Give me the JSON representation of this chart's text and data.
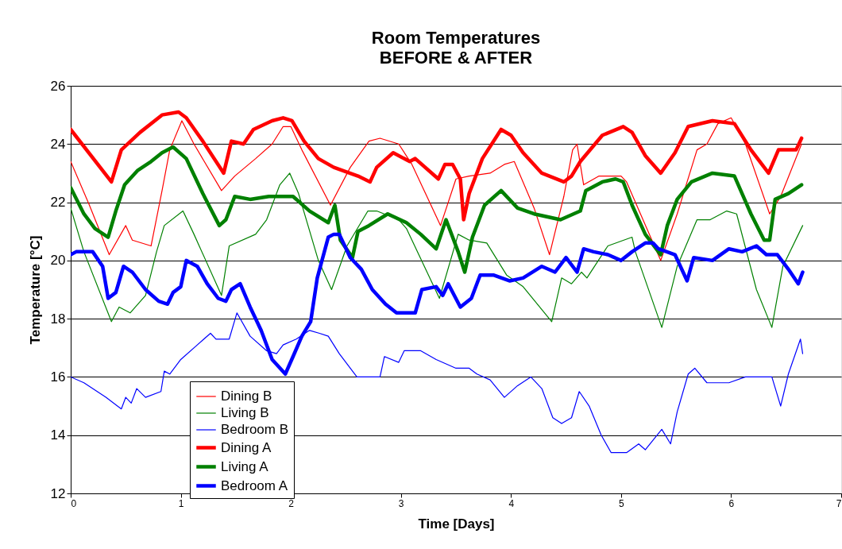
{
  "chart_data": {
    "type": "line",
    "title": "Room Temperatures",
    "subtitle": "BEFORE & AFTER",
    "xlabel": "Time [Days]",
    "ylabel": "Temperature [°C]",
    "xlim": [
      0,
      7
    ],
    "xticks": [
      0,
      1,
      2,
      3,
      4,
      5,
      6,
      7
    ],
    "ylim": [
      12,
      26
    ],
    "yticks": [
      12,
      14,
      16,
      18,
      20,
      22,
      24,
      26
    ],
    "grid": "y",
    "legend": "bottom left",
    "marker": "none",
    "line_style": "solid",
    "series": [
      {
        "name": "Dining B",
        "color": "#ff0000",
        "x": [
          0,
          0.17,
          0.35,
          0.5,
          0.56,
          0.73,
          0.83,
          0.9,
          1.01,
          1.12,
          1.37,
          1.49,
          1.68,
          1.83,
          1.93,
          2.0,
          2.1,
          2.36,
          2.54,
          2.71,
          2.81,
          2.98,
          3.1,
          3.36,
          3.5,
          3.62,
          3.81,
          3.94,
          4.03,
          4.21,
          4.35,
          4.48,
          4.56,
          4.6,
          4.66,
          4.8,
          5.0,
          5.05,
          5.36,
          5.51,
          5.69,
          5.78,
          5.88,
          6.0,
          6.13,
          6.35,
          6.45,
          6.64
        ],
        "values": [
          23.4,
          21.9,
          20.2,
          21.2,
          20.7,
          20.5,
          22.4,
          23.8,
          24.8,
          24.0,
          22.4,
          22.9,
          23.5,
          24.0,
          24.6,
          24.6,
          23.8,
          21.9,
          23.2,
          24.1,
          24.2,
          24.0,
          23.3,
          21.2,
          22.8,
          22.9,
          23.0,
          23.3,
          23.4,
          21.8,
          20.2,
          22.2,
          23.8,
          24.0,
          22.6,
          22.9,
          22.9,
          22.7,
          20.0,
          21.6,
          23.8,
          24.0,
          24.7,
          24.9,
          24.0,
          21.6,
          22.2,
          24.0
        ]
      },
      {
        "name": "Living B",
        "color": "#008000",
        "x": [
          0,
          0.12,
          0.37,
          0.44,
          0.54,
          0.68,
          0.78,
          0.85,
          1.02,
          1.12,
          1.37,
          1.44,
          1.68,
          1.78,
          1.9,
          1.99,
          2.07,
          2.25,
          2.37,
          2.51,
          2.7,
          2.78,
          2.98,
          3.05,
          3.35,
          3.52,
          3.62,
          3.78,
          3.96,
          4.11,
          4.37,
          4.46,
          4.55,
          4.64,
          4.69,
          4.88,
          5.1,
          5.13,
          5.37,
          5.51,
          5.69,
          5.81,
          5.96,
          6.05,
          6.23,
          6.37,
          6.47,
          6.65
        ],
        "values": [
          21.8,
          20.3,
          17.9,
          18.4,
          18.2,
          18.8,
          20.3,
          21.2,
          21.7,
          20.9,
          18.8,
          20.5,
          20.9,
          21.4,
          22.6,
          23.0,
          22.3,
          20.0,
          19.0,
          20.5,
          21.7,
          21.7,
          21.4,
          21.1,
          18.7,
          20.9,
          20.7,
          20.6,
          19.5,
          19.1,
          17.9,
          19.4,
          19.2,
          19.6,
          19.4,
          20.5,
          20.8,
          20.3,
          17.7,
          19.8,
          21.4,
          21.4,
          21.7,
          21.6,
          19.0,
          17.7,
          19.8,
          21.2
        ]
      },
      {
        "name": "Bedroom B",
        "color": "#0000ff",
        "x": [
          0,
          0.12,
          0.32,
          0.46,
          0.5,
          0.55,
          0.6,
          0.68,
          0.82,
          0.85,
          0.9,
          1.0,
          1.15,
          1.27,
          1.32,
          1.44,
          1.51,
          1.63,
          1.78,
          1.87,
          1.93,
          2.05,
          2.17,
          2.26,
          2.34,
          2.44,
          2.6,
          2.81,
          2.85,
          2.98,
          3.03,
          3.18,
          3.32,
          3.5,
          3.62,
          3.69,
          3.81,
          3.94,
          4.06,
          4.18,
          4.28,
          4.38,
          4.46,
          4.55,
          4.62,
          4.71,
          4.82,
          4.91,
          5.05,
          5.16,
          5.22,
          5.37,
          5.45,
          5.51,
          5.61,
          5.67,
          5.78,
          5.98,
          6.13,
          6.37,
          6.45,
          6.52,
          6.63,
          6.65
        ],
        "values": [
          16.0,
          15.8,
          15.3,
          14.9,
          15.3,
          15.1,
          15.6,
          15.3,
          15.5,
          16.2,
          16.1,
          16.6,
          17.1,
          17.5,
          17.3,
          17.3,
          18.2,
          17.4,
          16.9,
          16.8,
          17.1,
          17.3,
          17.6,
          17.5,
          17.4,
          16.8,
          16.0,
          16.0,
          16.7,
          16.5,
          16.9,
          16.9,
          16.6,
          16.3,
          16.3,
          16.1,
          15.9,
          15.3,
          15.7,
          16.0,
          15.6,
          14.6,
          14.4,
          14.6,
          15.5,
          15.0,
          14.0,
          13.4,
          13.4,
          13.7,
          13.5,
          14.2,
          13.7,
          14.8,
          16.1,
          16.3,
          15.8,
          15.8,
          16.0,
          16.0,
          15.0,
          16.1,
          17.3,
          16.8
        ]
      },
      {
        "name": "Dining A",
        "color": "#ff0000",
        "x": [
          0,
          0.37,
          0.46,
          0.63,
          0.83,
          0.98,
          1.05,
          1.2,
          1.39,
          1.46,
          1.57,
          1.66,
          1.83,
          1.93,
          2.01,
          2.12,
          2.25,
          2.39,
          2.61,
          2.72,
          2.78,
          2.93,
          3.08,
          3.13,
          3.34,
          3.4,
          3.47,
          3.54,
          3.57,
          3.62,
          3.74,
          3.91,
          4.0,
          4.11,
          4.28,
          4.48,
          4.55,
          4.63,
          4.83,
          5.02,
          5.1,
          5.22,
          5.36,
          5.49,
          5.61,
          5.83,
          6.03,
          6.18,
          6.34,
          6.43,
          6.59,
          6.64
        ],
        "values": [
          24.5,
          22.7,
          23.8,
          24.4,
          25.0,
          25.1,
          24.9,
          24.1,
          23.0,
          24.1,
          24.0,
          24.5,
          24.8,
          24.9,
          24.8,
          24.1,
          23.5,
          23.2,
          22.9,
          22.7,
          23.2,
          23.7,
          23.4,
          23.5,
          22.8,
          23.3,
          23.3,
          22.8,
          21.4,
          22.3,
          23.5,
          24.5,
          24.3,
          23.7,
          23.0,
          22.7,
          22.9,
          23.4,
          24.3,
          24.6,
          24.4,
          23.6,
          23.0,
          23.7,
          24.6,
          24.8,
          24.7,
          23.8,
          23.0,
          23.8,
          23.8,
          24.2
        ]
      },
      {
        "name": "Living A",
        "color": "#008000",
        "x": [
          0,
          0.12,
          0.22,
          0.34,
          0.41,
          0.49,
          0.61,
          0.73,
          0.83,
          0.93,
          1.05,
          1.2,
          1.35,
          1.41,
          1.49,
          1.63,
          1.8,
          2.02,
          2.17,
          2.34,
          2.4,
          2.45,
          2.56,
          2.61,
          2.71,
          2.88,
          3.05,
          3.18,
          3.32,
          3.41,
          3.52,
          3.58,
          3.65,
          3.76,
          3.91,
          4.06,
          4.21,
          4.45,
          4.63,
          4.68,
          4.83,
          4.95,
          5.02,
          5.1,
          5.22,
          5.36,
          5.42,
          5.51,
          5.64,
          5.83,
          6.03,
          6.18,
          6.3,
          6.35,
          6.4,
          6.52,
          6.64
        ],
        "values": [
          22.5,
          21.6,
          21.1,
          20.8,
          21.7,
          22.6,
          23.1,
          23.4,
          23.7,
          23.9,
          23.5,
          22.3,
          21.2,
          21.4,
          22.2,
          22.1,
          22.2,
          22.2,
          21.7,
          21.3,
          21.9,
          20.7,
          20.1,
          21.0,
          21.2,
          21.6,
          21.3,
          20.9,
          20.4,
          21.4,
          20.3,
          19.6,
          20.8,
          21.9,
          22.4,
          21.8,
          21.6,
          21.4,
          21.7,
          22.4,
          22.7,
          22.8,
          22.7,
          21.9,
          20.9,
          20.2,
          21.2,
          22.1,
          22.7,
          23.0,
          22.9,
          21.6,
          20.7,
          20.7,
          22.1,
          22.3,
          22.6
        ]
      },
      {
        "name": "Bedroom A",
        "color": "#0000ff",
        "x": [
          0,
          0.05,
          0.2,
          0.29,
          0.34,
          0.41,
          0.48,
          0.56,
          0.68,
          0.8,
          0.88,
          0.93,
          1.0,
          1.05,
          1.15,
          1.24,
          1.34,
          1.41,
          1.46,
          1.54,
          1.63,
          1.73,
          1.83,
          1.95,
          2.02,
          2.1,
          2.18,
          2.24,
          2.34,
          2.39,
          2.44,
          2.54,
          2.64,
          2.74,
          2.86,
          2.96,
          3.13,
          3.19,
          3.32,
          3.38,
          3.43,
          3.54,
          3.64,
          3.72,
          3.84,
          3.99,
          4.11,
          4.28,
          4.4,
          4.5,
          4.6,
          4.66,
          4.75,
          4.88,
          5.0,
          5.1,
          5.22,
          5.29,
          5.34,
          5.49,
          5.6,
          5.66,
          5.83,
          5.98,
          6.1,
          6.23,
          6.32,
          6.42,
          6.52,
          6.61,
          6.65
        ],
        "values": [
          20.2,
          20.3,
          20.3,
          19.8,
          18.7,
          18.9,
          19.8,
          19.6,
          19.0,
          18.6,
          18.5,
          18.9,
          19.1,
          20.0,
          19.8,
          19.2,
          18.7,
          18.6,
          19.0,
          19.2,
          18.4,
          17.6,
          16.6,
          16.1,
          16.7,
          17.4,
          17.9,
          19.4,
          20.8,
          20.9,
          20.9,
          20.1,
          19.7,
          19.0,
          18.5,
          18.2,
          18.2,
          19.0,
          19.1,
          18.8,
          19.2,
          18.4,
          18.7,
          19.5,
          19.5,
          19.3,
          19.4,
          19.8,
          19.6,
          20.1,
          19.6,
          20.4,
          20.3,
          20.2,
          20.0,
          20.3,
          20.6,
          20.6,
          20.4,
          20.2,
          19.3,
          20.1,
          20.0,
          20.4,
          20.3,
          20.5,
          20.2,
          20.2,
          19.7,
          19.2,
          19.6
        ]
      }
    ]
  }
}
